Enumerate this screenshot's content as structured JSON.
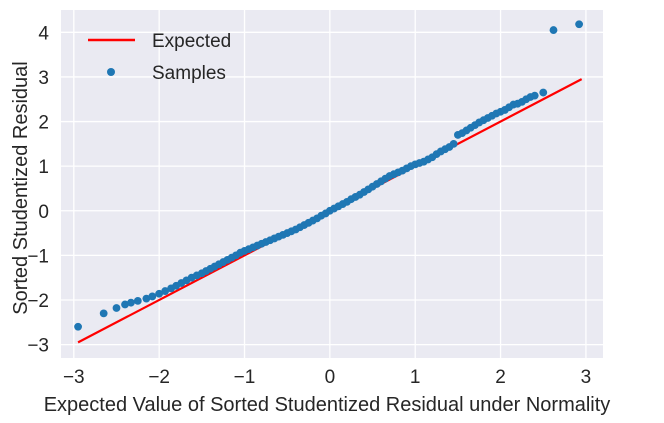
{
  "chart_data": {
    "type": "scatter",
    "title": "",
    "xlabel": "Expected Value of Sorted Studentized Residual under Normality",
    "ylabel": "Sorted Studentized Residual",
    "xlim": [
      -3.15,
      3.2
    ],
    "ylim": [
      -3.3,
      4.5
    ],
    "xticks": [
      -3,
      -2,
      -1,
      0,
      1,
      2,
      3
    ],
    "yticks": [
      -3,
      -2,
      -1,
      0,
      1,
      2,
      3,
      4
    ],
    "xtick_labels": [
      "−3",
      "−2",
      "−1",
      "0",
      "1",
      "2",
      "3"
    ],
    "ytick_labels": [
      "−3",
      "−2",
      "−1",
      "0",
      "1",
      "2",
      "3",
      "4"
    ],
    "grid": true,
    "legend_position": "top-left",
    "background_color": "#eaeaf2",
    "series": [
      {
        "name": "Expected",
        "kind": "line",
        "color": "#ff0000",
        "x": [
          -2.95,
          2.95
        ],
        "y": [
          -2.95,
          2.95
        ]
      },
      {
        "name": "Samples",
        "kind": "scatter",
        "color": "#1f77b4",
        "x": [
          -2.95,
          -2.65,
          -2.5,
          -2.4,
          -2.33,
          -2.25,
          -2.15,
          -2.08,
          -2.0,
          -1.93,
          -1.86,
          -1.8,
          -1.74,
          -1.68,
          -1.62,
          -1.56,
          -1.5,
          -1.45,
          -1.4,
          -1.35,
          -1.3,
          -1.25,
          -1.2,
          -1.15,
          -1.1,
          -1.05,
          -1.0,
          -0.95,
          -0.9,
          -0.85,
          -0.8,
          -0.75,
          -0.7,
          -0.65,
          -0.6,
          -0.55,
          -0.5,
          -0.45,
          -0.4,
          -0.35,
          -0.3,
          -0.25,
          -0.2,
          -0.15,
          -0.1,
          -0.05,
          0.0,
          0.05,
          0.1,
          0.15,
          0.2,
          0.25,
          0.3,
          0.35,
          0.4,
          0.45,
          0.5,
          0.55,
          0.6,
          0.65,
          0.7,
          0.75,
          0.8,
          0.85,
          0.9,
          0.95,
          1.0,
          1.05,
          1.1,
          1.15,
          1.2,
          1.25,
          1.3,
          1.35,
          1.4,
          1.45,
          1.5,
          1.55,
          1.6,
          1.65,
          1.7,
          1.75,
          1.8,
          1.85,
          1.9,
          1.95,
          2.0,
          2.05,
          2.1,
          2.15,
          2.2,
          2.25,
          2.3,
          2.35,
          2.4,
          2.5,
          2.62,
          2.92
        ],
        "y": [
          -2.6,
          -2.3,
          -2.18,
          -2.1,
          -2.06,
          -2.02,
          -1.97,
          -1.92,
          -1.86,
          -1.8,
          -1.74,
          -1.68,
          -1.62,
          -1.56,
          -1.5,
          -1.45,
          -1.4,
          -1.35,
          -1.3,
          -1.25,
          -1.2,
          -1.15,
          -1.1,
          -1.05,
          -1.0,
          -0.94,
          -0.9,
          -0.86,
          -0.82,
          -0.78,
          -0.74,
          -0.7,
          -0.66,
          -0.62,
          -0.58,
          -0.54,
          -0.5,
          -0.46,
          -0.42,
          -0.37,
          -0.32,
          -0.27,
          -0.22,
          -0.17,
          -0.11,
          -0.06,
          0.0,
          0.05,
          0.1,
          0.15,
          0.2,
          0.26,
          0.31,
          0.36,
          0.42,
          0.48,
          0.54,
          0.6,
          0.66,
          0.72,
          0.78,
          0.82,
          0.86,
          0.9,
          0.95,
          1.0,
          1.04,
          1.07,
          1.1,
          1.15,
          1.2,
          1.27,
          1.33,
          1.38,
          1.43,
          1.5,
          1.7,
          1.74,
          1.8,
          1.86,
          1.92,
          1.98,
          2.03,
          2.08,
          2.13,
          2.18,
          2.22,
          2.26,
          2.32,
          2.38,
          2.4,
          2.44,
          2.5,
          2.55,
          2.58,
          2.65,
          4.05,
          4.18
        ]
      }
    ]
  }
}
